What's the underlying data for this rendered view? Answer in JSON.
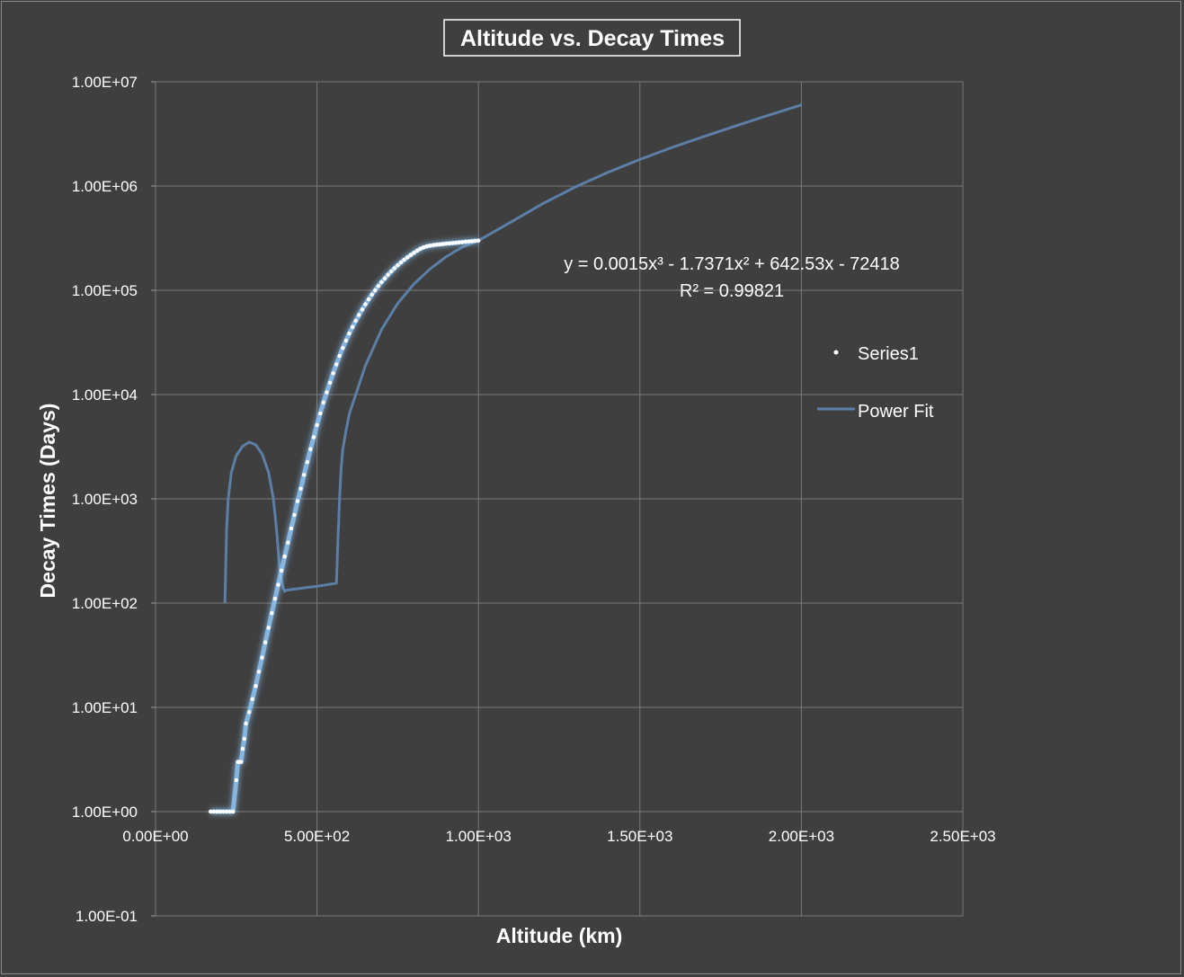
{
  "chart_data": {
    "type": "scatter",
    "title": "Altitude vs. Decay Times",
    "xlabel": "Altitude (km)",
    "ylabel": "Decay Times (Days)",
    "xlim": [
      0,
      2500
    ],
    "ylim": [
      0.1,
      10000000
    ],
    "y_scale": "log",
    "grid": true,
    "legend_position": "right",
    "x_ticks": [
      "0.00E+00",
      "5.00E+02",
      "1.00E+03",
      "1.50E+03",
      "2.00E+03",
      "2.50E+03"
    ],
    "y_ticks": [
      "1.00E-01",
      "1.00E+00",
      "1.00E+01",
      "1.00E+02",
      "1.00E+03",
      "1.00E+04",
      "1.00E+05",
      "1.00E+06",
      "1.00E+07"
    ],
    "series": [
      {
        "name": "Series1",
        "color": "#8ec3f2",
        "x": [
          170,
          180,
          190,
          200,
          210,
          220,
          230,
          240,
          250,
          255,
          260,
          265,
          270,
          275,
          280,
          290,
          300,
          310,
          320,
          330,
          340,
          350,
          360,
          370,
          380,
          390,
          400,
          410,
          420,
          430,
          440,
          450,
          460,
          470,
          480,
          490,
          500,
          510,
          520,
          530,
          540,
          550,
          560,
          570,
          580,
          590,
          600,
          610,
          620,
          630,
          640,
          650,
          660,
          670,
          680,
          690,
          700,
          710,
          720,
          730,
          740,
          750,
          760,
          770,
          780,
          790,
          800,
          810,
          820,
          830,
          840,
          850,
          860,
          870,
          880,
          890,
          900,
          910,
          920,
          930,
          940,
          950,
          960,
          970,
          980,
          990,
          1000
        ],
        "y": [
          1,
          1,
          1,
          1,
          1,
          1,
          1,
          1,
          2,
          3,
          3,
          3,
          4,
          5,
          7,
          9,
          12,
          16,
          22,
          30,
          42,
          58,
          80,
          110,
          150,
          205,
          280,
          380,
          520,
          700,
          950,
          1250,
          1700,
          2250,
          3000,
          3900,
          5100,
          6600,
          8400,
          10500,
          13000,
          16000,
          19500,
          23500,
          28000,
          33000,
          38500,
          44500,
          51000,
          58000,
          65500,
          73500,
          82000,
          91000,
          100000,
          110000,
          120000,
          130000,
          141000,
          152000,
          163000,
          174000,
          185000,
          196000,
          207000,
          218000,
          229000,
          240000,
          250000,
          258000,
          264000,
          268000,
          271000,
          274000,
          276000,
          278000,
          280000,
          282000,
          284000,
          286000,
          288000,
          290000,
          292000,
          294000,
          296000,
          298000,
          300000
        ]
      },
      {
        "name": "Power Fit",
        "color": "#5b7fa6",
        "x": [
          215,
          220,
          225,
          235,
          250,
          270,
          290,
          310,
          330,
          350,
          365,
          375,
          385,
          395,
          400,
          405,
          500,
          560,
          565,
          570,
          575,
          580,
          590,
          600,
          650,
          700,
          750,
          800,
          850,
          900,
          950,
          1000,
          1100,
          1200,
          1300,
          1400,
          1500,
          1600,
          1700,
          1800,
          1900,
          2000
        ],
        "y": [
          100,
          500,
          1000,
          1800,
          2600,
          3200,
          3500,
          3300,
          2700,
          1800,
          1000,
          500,
          200,
          140,
          130,
          133,
          145,
          155,
          400,
          1000,
          2000,
          3000,
          4500,
          6500,
          19000,
          42000,
          75000,
          115000,
          160000,
          210000,
          260000,
          300000,
          450000,
          680000,
          980000,
          1350000,
          1800000,
          2350000,
          3000000,
          3800000,
          4800000,
          6000000
        ]
      }
    ],
    "trendline": {
      "equation": "y = 0.0015x³ - 1.7371x² + 642.53x - 72418",
      "r_squared": "R² = 0.99821"
    }
  }
}
